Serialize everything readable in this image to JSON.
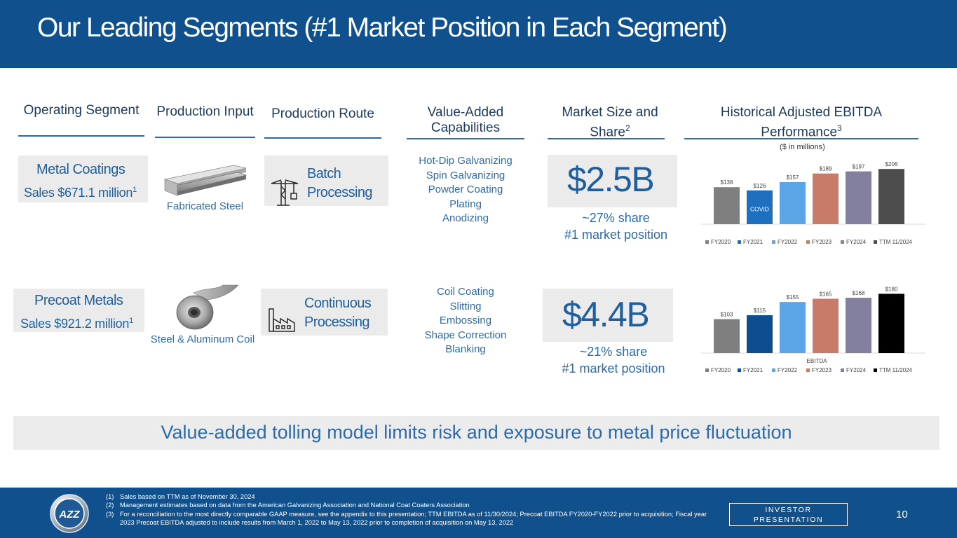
{
  "header": {
    "title": "Our Leading Segments (#1 Market Position in Each Segment)"
  },
  "columns": {
    "operating_segment": "Operating Segment",
    "production_input": "Production Input",
    "production_route": "Production Route",
    "value_added": "Value-Added Capabilities",
    "market_size": "Market Size and Share",
    "market_size_sup": "2",
    "historical": "Historical Adjusted EBITDA Performance",
    "historical_sup": "3"
  },
  "segments": [
    {
      "name": "Metal Coatings",
      "sales": "Sales $671.1 million",
      "sales_sup": "1",
      "input_caption": "Fabricated Steel",
      "route": "Batch Processing",
      "capabilities": [
        "Hot-Dip Galvanizing",
        "Spin Galvanizing",
        "Powder Coating",
        "Plating",
        "Anodizing"
      ],
      "market_value": "$2.5B",
      "share": "~27% share",
      "position": "#1 market position"
    },
    {
      "name": "Precoat Metals",
      "sales": "Sales $921.2 million",
      "sales_sup": "1",
      "input_caption": "Steel & Aluminum Coil",
      "route": "Continuous Processing",
      "capabilities": [
        "Coil Coating",
        "Slitting",
        "Embossing",
        "Shape Correction",
        "Blanking"
      ],
      "market_value": "$4.4B",
      "share": "~21% share",
      "position": "#1 market position"
    }
  ],
  "chart_subtitle": "($ in millions)",
  "chart_data": [
    {
      "type": "bar",
      "categories": [
        "FY2020",
        "FY2021",
        "FY2022",
        "FY2023",
        "FY2024",
        "TTM 11/2024"
      ],
      "values": [
        138,
        126,
        157,
        189,
        197,
        206
      ],
      "data_labels": [
        "$138",
        "$126",
        "$157",
        "$189",
        "$197",
        "$206"
      ],
      "colors": [
        "#7f7f7f",
        "#1f6fbf",
        "#5ba4e5",
        "#c97b6a",
        "#837f9e",
        "#4d4d4d"
      ],
      "annotations": [
        {
          "category": "FY2021",
          "text": "COVID"
        }
      ],
      "ylim": [
        0,
        230
      ],
      "legend": "bottom",
      "xlabel": ""
    },
    {
      "type": "bar",
      "categories": [
        "FY2020",
        "FY2021",
        "FY2022",
        "FY2023",
        "FY2024",
        "TTM 11/2024"
      ],
      "values": [
        103,
        115,
        155,
        165,
        168,
        180
      ],
      "data_labels": [
        "$103",
        "$115",
        "$155",
        "$165",
        "$168",
        "$180"
      ],
      "colors": [
        "#7f7f7f",
        "#0f4e8e",
        "#5ba4e5",
        "#c97b6a",
        "#837f9e",
        "#000000"
      ],
      "annotations": [],
      "ylim": [
        0,
        200
      ],
      "legend": "bottom",
      "xlabel": "EBITDA"
    }
  ],
  "banner": {
    "text": "Value-added tolling model limits risk and exposure to metal price fluctuation"
  },
  "footer": {
    "notes": [
      {
        "num": "(1)",
        "text": "Sales based on TTM as of November 30, 2024"
      },
      {
        "num": "(2)",
        "text": "Management estimates based on data from the American Galvanizing Association and National Coat Coaters Association"
      },
      {
        "num": "(3)",
        "text": "For a reconciliation to the most directly comparable GAAP measure, see the appendix to this presentation; TTM EBITDA as of 11/30/2024; Precoat EBITDA FY2020-FY2022 prior to acquisition; Fiscal year 2023 Precoat EBITDA adjusted to include results from March 1, 2022 to May 13, 2022 prior to completion of acquisition on May 13, 2022"
      }
    ],
    "investor_line1": "INVESTOR",
    "investor_line2": "PRESENTATION",
    "page_number": "10",
    "logo_text": "AZZ"
  }
}
